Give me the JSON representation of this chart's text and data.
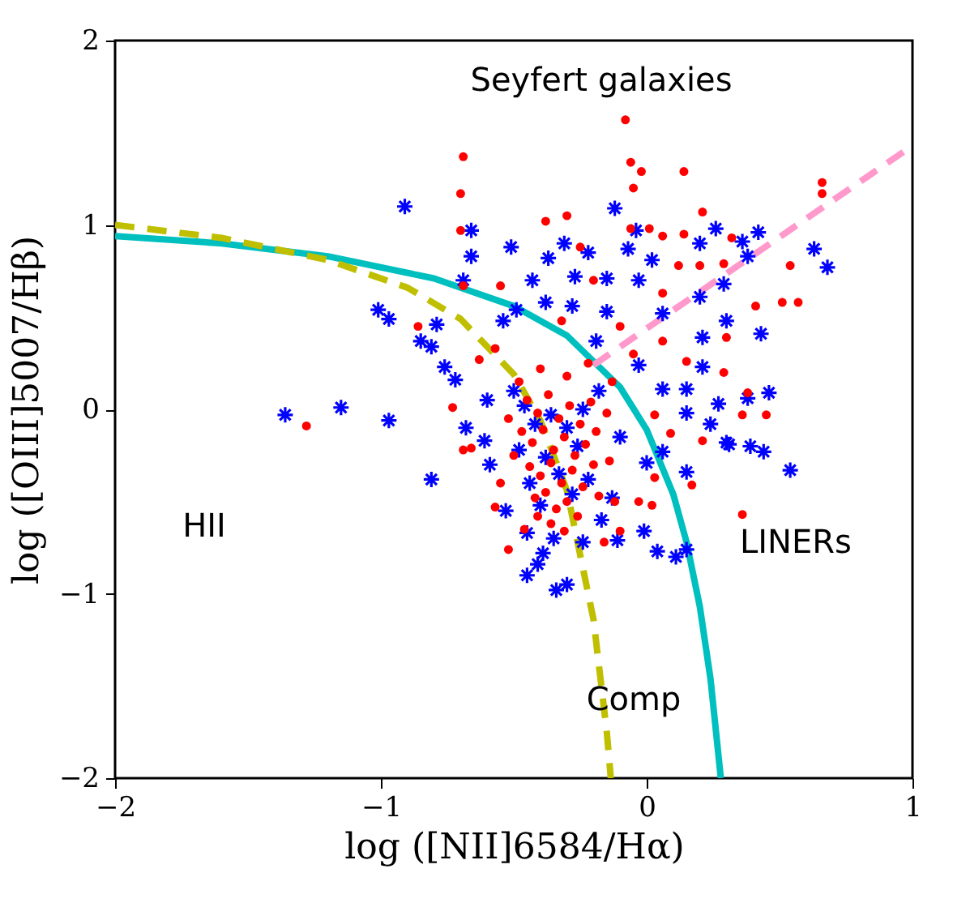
{
  "chart_data": {
    "type": "scatter",
    "xlabel": "log ([NII]6584/Hα)",
    "ylabel": "log ([OIII]5007/Hβ)",
    "xlim": [
      -2,
      1
    ],
    "ylim": [
      -2,
      2
    ],
    "xticks": [
      {
        "value": -2,
        "label": "−2"
      },
      {
        "value": -1,
        "label": "−1"
      },
      0,
      1
    ],
    "yticks": [
      {
        "value": -2,
        "label": "−2"
      },
      {
        "value": -1,
        "label": "−1"
      },
      0,
      1,
      2
    ],
    "annotations": [
      "Seyfert galaxies",
      "HII",
      "LINERs",
      "Comp"
    ],
    "series": [
      {
        "type": "line",
        "color": "#00bfbf",
        "line_style": "solid",
        "x": [
          -2,
          -1.6,
          -1.2,
          -0.8,
          -0.5,
          -0.3,
          -0.1,
          0.0,
          0.1,
          0.15,
          0.2,
          0.24,
          0.279
        ],
        "values": [
          0.94,
          0.9,
          0.83,
          0.71,
          0.56,
          0.4,
          0.12,
          -0.11,
          -0.46,
          -0.72,
          -1.07,
          -1.46,
          -2.0
        ]
      },
      {
        "type": "line",
        "color": "#bfbf00",
        "line_style": "dashed",
        "x": [
          -2,
          -1.6,
          -1.2,
          -0.9,
          -0.7,
          -0.5,
          -0.4,
          -0.3,
          -0.2,
          -0.15,
          -0.135
        ],
        "values": [
          1.0,
          0.93,
          0.81,
          0.66,
          0.49,
          0.19,
          -0.06,
          -0.44,
          -1.14,
          -1.75,
          -2.0
        ]
      },
      {
        "type": "line",
        "color": "#ff99cc",
        "line_style": "dashed",
        "x": [
          -0.2,
          1.0
        ],
        "values": [
          0.24,
          1.43
        ]
      },
      {
        "color": "#0000ff",
        "marker": "cross",
        "x": [
          -0.91,
          -0.66,
          -0.66,
          -0.51,
          -0.69,
          -1.01,
          -0.97,
          -0.85,
          -0.81,
          -0.79,
          -1.36,
          -1.15,
          -0.97,
          -0.49,
          -0.54,
          -0.76,
          -0.72,
          -0.43,
          -0.37,
          -0.31,
          -0.27,
          -0.22,
          -0.12,
          -0.38,
          -0.28,
          -0.04,
          -0.07,
          0.02,
          -0.15,
          -0.03,
          0.06,
          0.2,
          0.29,
          0.26,
          0.2,
          0.36,
          0.42,
          0.38,
          0.63,
          0.68,
          0.3,
          0.21,
          0.43,
          0.21,
          -0.03,
          0.06,
          0.15,
          0.27,
          0.38,
          0.46,
          0.15,
          0.24,
          0.3,
          0.39,
          0.44,
          0.54,
          0.15,
          0.06,
          -0.19,
          -0.15,
          -0.68,
          -0.81,
          -0.61,
          -0.59,
          -0.45,
          -0.34,
          -0.3,
          -0.41,
          -0.39,
          -0.24,
          -0.11,
          -0.01,
          0.04,
          0.11,
          0.15,
          0.31,
          0.0,
          -0.13,
          -0.45,
          -0.46,
          -0.42,
          -0.36,
          -0.3,
          -0.24,
          -0.48,
          -0.38,
          -0.26,
          -0.44,
          -0.33,
          -0.22,
          -0.4,
          -0.28,
          -0.35,
          -0.5,
          -0.18,
          -0.1,
          -0.53,
          -0.17,
          -0.6
        ],
        "values": [
          1.1,
          0.97,
          0.83,
          0.88,
          0.7,
          0.54,
          0.49,
          0.37,
          0.34,
          0.46,
          -0.03,
          0.01,
          -0.06,
          0.54,
          0.48,
          0.23,
          0.16,
          0.7,
          0.82,
          0.9,
          0.72,
          0.85,
          1.09,
          0.58,
          0.56,
          0.97,
          0.87,
          0.81,
          0.71,
          0.7,
          0.52,
          0.61,
          0.68,
          0.98,
          0.9,
          0.91,
          0.96,
          0.83,
          0.87,
          0.77,
          0.48,
          0.39,
          0.41,
          0.23,
          0.24,
          0.11,
          0.11,
          0.03,
          0.06,
          0.09,
          -0.02,
          -0.08,
          -0.18,
          -0.2,
          -0.23,
          -0.33,
          -0.34,
          -0.23,
          0.37,
          0.53,
          -0.1,
          -0.38,
          -0.17,
          -0.3,
          -0.9,
          -0.98,
          -0.95,
          -0.84,
          -0.78,
          -0.72,
          -0.71,
          -0.66,
          -0.77,
          -0.8,
          -0.76,
          -0.19,
          -0.29,
          -0.48,
          -0.67,
          0.02,
          -0.08,
          -0.03,
          -0.1,
          0.0,
          -0.22,
          -0.26,
          -0.2,
          -0.4,
          -0.35,
          -0.38,
          -0.52,
          -0.46,
          -0.7,
          0.1,
          0.1,
          -0.15,
          -0.55,
          -0.6,
          0.05
        ]
      },
      {
        "color": "#ff0000",
        "marker": "circle",
        "x": [
          -0.08,
          -0.69,
          -0.7,
          -0.7,
          -0.06,
          -0.02,
          0.14,
          0.66,
          0.66,
          -0.05,
          0.2,
          0.54,
          0.51,
          0.57,
          0.41,
          0.36,
          0.36,
          -1.28,
          -0.86,
          0.06,
          0.15,
          0.29,
          0.38,
          0.45,
          0.3,
          0.12,
          0.29,
          0.32,
          0.21,
          0.14,
          0.06,
          0.01,
          -0.06,
          0.06,
          0.21,
          0.17,
          -0.73,
          -0.69,
          -0.55,
          -0.52,
          -0.57,
          -0.16,
          -0.1,
          0.02,
          -0.03,
          -0.18,
          -0.12,
          0.03,
          0.09,
          0.03,
          -0.69,
          -0.66,
          -0.38,
          -0.3,
          -0.25,
          -0.2,
          -0.32,
          -0.57,
          -0.63,
          -0.1,
          -0.05,
          -0.13,
          -0.45,
          -0.41,
          -0.37,
          -0.33,
          -0.29,
          -0.25,
          -0.21,
          -0.47,
          -0.43,
          -0.39,
          -0.35,
          -0.31,
          -0.27,
          -0.23,
          -0.19,
          -0.44,
          -0.4,
          -0.36,
          -0.32,
          -0.28,
          -0.24,
          -0.2,
          -0.42,
          -0.38,
          -0.34,
          -0.3,
          -0.26,
          -0.36,
          -0.31,
          -0.41,
          -0.5,
          -0.52,
          -0.48,
          -0.4,
          -0.3,
          -0.22,
          -0.15,
          -0.14,
          -0.55,
          -0.46
        ],
        "values": [
          1.57,
          1.37,
          1.17,
          0.97,
          1.34,
          1.29,
          1.29,
          1.17,
          1.23,
          1.2,
          0.78,
          0.78,
          0.58,
          0.58,
          0.56,
          -0.03,
          -0.57,
          -0.09,
          0.45,
          0.37,
          0.26,
          0.2,
          0.09,
          -0.03,
          0.39,
          0.78,
          0.79,
          0.93,
          1.07,
          0.95,
          0.94,
          0.98,
          0.98,
          0.63,
          -0.17,
          -0.41,
          0.01,
          0.67,
          0.67,
          -0.76,
          -0.53,
          -0.72,
          -0.66,
          -0.52,
          -0.5,
          -0.47,
          -0.5,
          -0.37,
          -0.13,
          -0.03,
          -0.22,
          -0.21,
          1.02,
          1.05,
          0.88,
          0.7,
          0.48,
          0.33,
          0.27,
          0.45,
          0.3,
          0.15,
          0.05,
          -0.02,
          0.08,
          -0.05,
          0.02,
          -0.08,
          0.04,
          -0.12,
          -0.18,
          -0.11,
          -0.22,
          -0.15,
          -0.25,
          -0.19,
          -0.12,
          -0.31,
          -0.36,
          -0.29,
          -0.4,
          -0.33,
          -0.42,
          -0.3,
          -0.48,
          -0.45,
          -0.54,
          -0.5,
          -0.58,
          -0.62,
          -0.66,
          -0.58,
          -0.25,
          -0.05,
          0.15,
          0.22,
          0.18,
          0.25,
          -0.02,
          -0.28,
          -0.4,
          -0.65
        ]
      }
    ]
  }
}
